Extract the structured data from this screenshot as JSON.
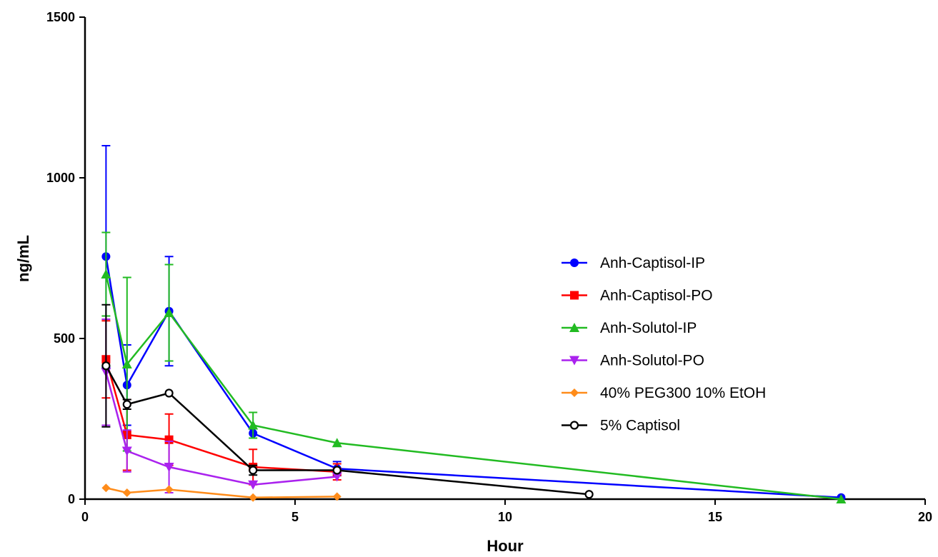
{
  "chart_data": {
    "type": "line",
    "title": "",
    "xlabel": "Hour",
    "ylabel": "ng/mL",
    "xlim": [
      0,
      20
    ],
    "ylim": [
      0,
      1500
    ],
    "x_ticks": [
      0,
      5,
      10,
      15,
      20
    ],
    "y_ticks": [
      0,
      500,
      1000,
      1500
    ],
    "grid": false,
    "legend_position": "right",
    "series": [
      {
        "name": "Anh-Captisol-IP",
        "color": "#0000ff",
        "marker": "circle",
        "x": [
          0.5,
          1,
          2,
          4,
          6,
          18
        ],
        "y": [
          755,
          355,
          585,
          205,
          95,
          5
        ],
        "error": [
          345,
          125,
          170,
          0,
          22,
          0
        ]
      },
      {
        "name": "Anh-Captisol-PO",
        "color": "#ff0000",
        "marker": "square",
        "x": [
          0.5,
          1,
          2,
          4,
          6
        ],
        "y": [
          435,
          200,
          185,
          100,
          85
        ],
        "error": [
          120,
          110,
          80,
          55,
          25
        ]
      },
      {
        "name": "Anh-Solutol-IP",
        "color": "#22bb22",
        "marker": "triangle-up",
        "x": [
          0.5,
          1,
          2,
          4,
          6,
          18
        ],
        "y": [
          700,
          420,
          580,
          230,
          175,
          0
        ],
        "error": [
          130,
          270,
          150,
          40,
          0,
          0
        ]
      },
      {
        "name": "Anh-Solutol-PO",
        "color": "#aa22ee",
        "marker": "triangle-down",
        "x": [
          0.5,
          1,
          2,
          4,
          6
        ],
        "y": [
          395,
          150,
          100,
          45,
          70
        ],
        "error": [
          165,
          65,
          80,
          0,
          0
        ]
      },
      {
        "name": "40% PEG300 10% EtOH",
        "color": "#ff8c1a",
        "marker": "diamond",
        "x": [
          0.5,
          1,
          2,
          4,
          6
        ],
        "y": [
          35,
          20,
          30,
          5,
          8
        ],
        "error": [
          0,
          0,
          0,
          0,
          0
        ]
      },
      {
        "name": "5% Captisol",
        "color": "#000000",
        "marker": "open-circle",
        "x": [
          0.5,
          1,
          2,
          4,
          6,
          12
        ],
        "y": [
          415,
          295,
          330,
          90,
          90,
          15
        ],
        "error": [
          190,
          15,
          0,
          15,
          0,
          0
        ]
      }
    ]
  }
}
